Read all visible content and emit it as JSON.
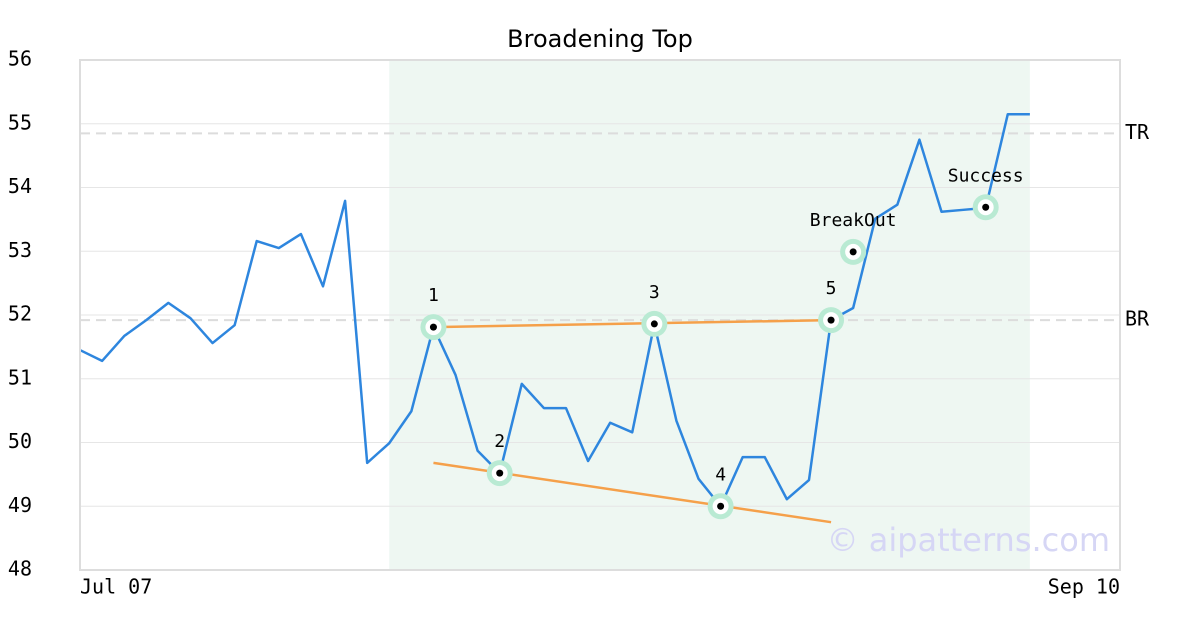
{
  "chart_data": {
    "type": "line",
    "title": "Broadening Top",
    "x": [
      0,
      1,
      2,
      3,
      4,
      5,
      6,
      7,
      8,
      9,
      10,
      11,
      12,
      13,
      14,
      15,
      16,
      17,
      18,
      19,
      20,
      21,
      22,
      23,
      24,
      25,
      26,
      27,
      28,
      29,
      30,
      31,
      32,
      33,
      34,
      35,
      36,
      37,
      38,
      39,
      40,
      41,
      42,
      43
    ],
    "values": [
      51.45,
      51.28,
      51.67,
      51.92,
      52.19,
      51.95,
      51.56,
      51.84,
      53.16,
      53.05,
      53.27,
      52.45,
      53.79,
      49.68,
      49.99,
      50.49,
      51.81,
      51.06,
      49.87,
      49.52,
      50.92,
      50.54,
      50.54,
      49.71,
      50.31,
      50.16,
      51.86,
      50.34,
      49.43,
      49.0,
      49.77,
      49.77,
      49.11,
      49.41,
      51.92,
      52.11,
      53.51,
      53.73,
      54.75,
      53.62,
      53.65,
      53.68,
      55.15,
      55.15
    ],
    "color": "#2e86de",
    "xlim": [
      0,
      47.08
    ],
    "xticks": [
      {
        "value": 0,
        "label": "Jul 07"
      },
      {
        "value": 47.08,
        "label": "Sep 10"
      }
    ],
    "ylim": [
      48,
      56
    ],
    "yticks": [
      48,
      49,
      50,
      51,
      52,
      53,
      54,
      55,
      56
    ],
    "grid": true,
    "highlight_x": [
      14,
      43
    ],
    "highlight_color": "#eef7f2",
    "levels": [
      {
        "label": "TR",
        "value": 54.85
      },
      {
        "label": "BR",
        "value": 51.92
      }
    ],
    "trendlines": [
      {
        "x": [
          16,
          34
        ],
        "y": [
          51.81,
          51.92
        ]
      },
      {
        "x": [
          16,
          34
        ],
        "y": [
          49.68,
          48.75
        ]
      }
    ],
    "trend_color": "#f5a04a",
    "points": [
      {
        "label": "1",
        "x": 16,
        "y": 51.81
      },
      {
        "label": "2",
        "x": 19,
        "y": 49.52
      },
      {
        "label": "3",
        "x": 26,
        "y": 51.86
      },
      {
        "label": "4",
        "x": 29,
        "y": 49.0
      },
      {
        "label": "5",
        "x": 34,
        "y": 51.92
      },
      {
        "label": "BreakOut",
        "x": 35,
        "y": 52.99
      },
      {
        "label": "Success",
        "x": 41,
        "y": 53.69
      }
    ],
    "watermark": "© aipatterns.com"
  }
}
